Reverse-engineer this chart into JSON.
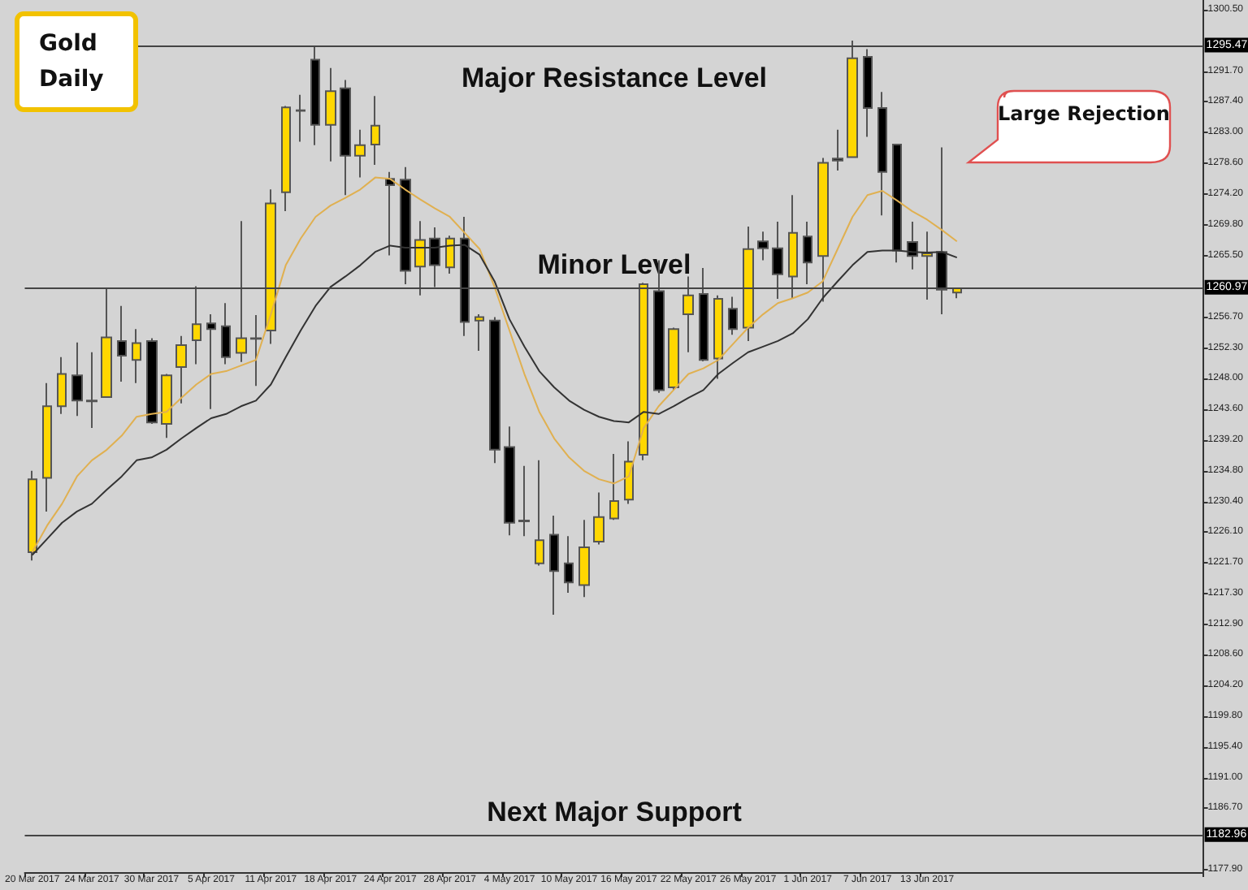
{
  "chart_data": {
    "type": "candlestick",
    "title": "Gold Daily",
    "categories": [
      "20 Mar 2017",
      null,
      null,
      null,
      "24 Mar 2017",
      null,
      null,
      null,
      "30 Mar 2017",
      null,
      null,
      null,
      "5 Apr 2017",
      null,
      null,
      null,
      "11 Apr 2017",
      null,
      null,
      null,
      "18 Apr 2017",
      null,
      null,
      null,
      "24 Apr 2017",
      null,
      null,
      null,
      "28 Apr 2017",
      null,
      null,
      null,
      "4 May 2017",
      null,
      null,
      null,
      "10 May 2017",
      null,
      null,
      null,
      "16 May 2017",
      null,
      null,
      null,
      "22 May 2017",
      null,
      null,
      null,
      "26 May 2017",
      null,
      null,
      null,
      "1 Jun 2017",
      null,
      null,
      null,
      "7 Jun 2017",
      null,
      null,
      null,
      "13 Jun 2017",
      null,
      null
    ],
    "series": [
      {
        "type": "candlestick",
        "ohlc": [
          [
            1223.2,
            1234.8,
            1222.0,
            1233.6
          ],
          [
            1233.8,
            1247.3,
            1229.0,
            1244.0
          ],
          [
            1244.0,
            1251.0,
            1242.9,
            1248.6
          ],
          [
            1248.4,
            1253.1,
            1242.6,
            1244.8
          ],
          [
            1244.8,
            1251.7,
            1240.9,
            1244.7
          ],
          [
            1245.3,
            1260.8,
            1245.2,
            1253.8
          ],
          [
            1253.3,
            1258.3,
            1247.5,
            1251.2
          ],
          [
            1250.6,
            1255.0,
            1247.3,
            1253.0
          ],
          [
            1253.3,
            1253.7,
            1241.5,
            1241.7
          ],
          [
            1241.5,
            1248.6,
            1239.5,
            1248.4
          ],
          [
            1249.6,
            1254.0,
            1244.4,
            1252.7
          ],
          [
            1253.4,
            1261.1,
            1250.0,
            1255.7
          ],
          [
            1255.8,
            1257.1,
            1243.6,
            1255.0
          ],
          [
            1255.4,
            1258.7,
            1250.0,
            1251.0
          ],
          [
            1251.6,
            1270.4,
            1250.3,
            1253.7
          ],
          [
            1253.7,
            1257.0,
            1246.9,
            1253.6
          ],
          [
            1254.8,
            1274.9,
            1252.9,
            1272.9
          ],
          [
            1274.5,
            1286.8,
            1271.8,
            1286.6
          ],
          [
            1286.1,
            1288.4,
            1281.7,
            1286.2
          ],
          [
            1293.4,
            1295.3,
            1281.2,
            1284.1
          ],
          [
            1284.1,
            1292.2,
            1278.9,
            1288.9
          ],
          [
            1289.3,
            1290.5,
            1274.1,
            1279.7
          ],
          [
            1279.7,
            1283.4,
            1276.6,
            1281.2
          ],
          [
            1281.3,
            1288.2,
            1278.4,
            1284.0
          ],
          [
            1276.4,
            1277.4,
            1265.5,
            1275.5
          ],
          [
            1276.3,
            1278.1,
            1261.4,
            1263.3
          ],
          [
            1263.9,
            1270.4,
            1259.8,
            1267.7
          ],
          [
            1267.9,
            1269.5,
            1261.0,
            1264.1
          ],
          [
            1263.8,
            1268.3,
            1262.9,
            1267.9
          ],
          [
            1267.9,
            1271.0,
            1254.0,
            1256.0
          ],
          [
            1256.2,
            1257.1,
            1251.9,
            1256.7
          ],
          [
            1256.2,
            1256.7,
            1235.9,
            1237.8
          ],
          [
            1238.2,
            1241.1,
            1225.6,
            1227.4
          ],
          [
            1227.7,
            1235.5,
            1225.5,
            1227.6
          ],
          [
            1221.6,
            1236.3,
            1221.3,
            1224.9
          ],
          [
            1225.7,
            1228.4,
            1214.3,
            1220.5
          ],
          [
            1221.6,
            1225.5,
            1217.4,
            1218.9
          ],
          [
            1218.5,
            1227.8,
            1216.8,
            1223.9
          ],
          [
            1224.7,
            1231.7,
            1224.3,
            1228.2
          ],
          [
            1228.0,
            1237.2,
            1227.8,
            1230.5
          ],
          [
            1230.7,
            1239.0,
            1230.1,
            1236.1
          ],
          [
            1237.1,
            1261.6,
            1236.3,
            1261.4
          ],
          [
            1260.4,
            1264.8,
            1245.9,
            1246.3
          ],
          [
            1246.7,
            1255.2,
            1246.3,
            1255.0
          ],
          [
            1257.1,
            1262.5,
            1251.7,
            1259.8
          ],
          [
            1260.0,
            1263.7,
            1250.4,
            1250.6
          ],
          [
            1250.8,
            1259.8,
            1247.9,
            1259.3
          ],
          [
            1257.9,
            1259.6,
            1254.2,
            1255.0
          ],
          [
            1255.2,
            1269.6,
            1253.3,
            1266.4
          ],
          [
            1267.5,
            1268.9,
            1264.8,
            1266.5
          ],
          [
            1266.5,
            1270.3,
            1259.3,
            1262.8
          ],
          [
            1262.5,
            1274.1,
            1259.4,
            1268.7
          ],
          [
            1268.2,
            1270.3,
            1261.4,
            1264.5
          ],
          [
            1265.4,
            1279.4,
            1258.9,
            1278.7
          ],
          [
            1279.3,
            1283.4,
            1277.6,
            1279.0
          ],
          [
            1279.5,
            1296.1,
            1279.4,
            1293.6
          ],
          [
            1293.8,
            1294.9,
            1282.4,
            1286.5
          ],
          [
            1286.5,
            1288.8,
            1271.2,
            1277.4
          ],
          [
            1281.3,
            1281.4,
            1264.5,
            1266.2
          ],
          [
            1267.4,
            1270.3,
            1263.5,
            1265.4
          ],
          [
            1265.4,
            1268.9,
            1259.2,
            1265.8
          ],
          [
            1266.0,
            1280.9,
            1257.1,
            1260.6
          ],
          [
            1260.2,
            1260.8,
            1259.4,
            1260.8
          ]
        ],
        "colors": [
          "#ffd700",
          "#ffd700",
          "#ffd700",
          "#000000",
          "#000000",
          "#ffd700",
          "#000000",
          "#ffd700",
          "#000000",
          "#ffd700",
          "#ffd700",
          "#ffd700",
          "#000000",
          "#000000",
          "#ffd700",
          "#000000",
          "#ffd700",
          "#ffd700",
          "#ffd700",
          "#000000",
          "#ffd700",
          "#000000",
          "#ffd700",
          "#ffd700",
          "#000000",
          "#000000",
          "#ffd700",
          "#000000",
          "#ffd700",
          "#000000",
          "#ffd700",
          "#000000",
          "#000000",
          "#000000",
          "#ffd700",
          "#000000",
          "#000000",
          "#ffd700",
          "#ffd700",
          "#ffd700",
          "#ffd700",
          "#ffd700",
          "#000000",
          "#ffd700",
          "#ffd700",
          "#000000",
          "#ffd700",
          "#000000",
          "#ffd700",
          "#000000",
          "#000000",
          "#ffd700",
          "#000000",
          "#ffd700",
          "#000000",
          "#ffd700",
          "#000000",
          "#000000",
          "#000000",
          "#000000",
          "#ffd700",
          "#000000",
          "#ffd700"
        ]
      },
      {
        "type": "line",
        "color": "#e0b050",
        "values": [
          1223.2,
          1227.0,
          1230.1,
          1234.0,
          1236.3,
          1237.8,
          1239.8,
          1242.5,
          1242.9,
          1243.2,
          1245.2,
          1247.1,
          1248.6,
          1249.0,
          1249.8,
          1250.6,
          1257.1,
          1264.1,
          1267.9,
          1271.0,
          1272.6,
          1273.7,
          1274.9,
          1276.6,
          1276.4,
          1274.9,
          1273.5,
          1272.2,
          1271.0,
          1268.7,
          1266.4,
          1261.0,
          1254.8,
          1248.6,
          1243.2,
          1239.4,
          1236.7,
          1234.8,
          1233.6,
          1233.0,
          1234.0,
          1240.9,
          1244.0,
          1246.3,
          1248.6,
          1249.4,
          1250.6,
          1252.9,
          1255.2,
          1257.1,
          1258.7,
          1259.4,
          1260.2,
          1261.8,
          1266.4,
          1271.0,
          1274.1,
          1274.7,
          1273.3,
          1271.8,
          1270.6,
          1269.1,
          1267.5
        ]
      },
      {
        "type": "line",
        "color": "#333333",
        "values": [
          1222.8,
          1225.1,
          1227.4,
          1229.0,
          1230.1,
          1232.1,
          1234.0,
          1236.3,
          1236.7,
          1237.8,
          1239.4,
          1240.9,
          1242.3,
          1242.9,
          1244.0,
          1244.8,
          1247.1,
          1251.0,
          1254.8,
          1258.3,
          1261.0,
          1262.5,
          1264.1,
          1266.0,
          1266.9,
          1266.6,
          1266.6,
          1266.6,
          1266.9,
          1267.0,
          1265.6,
          1261.8,
          1256.4,
          1252.5,
          1249.0,
          1246.7,
          1244.8,
          1243.5,
          1242.5,
          1241.9,
          1241.7,
          1243.2,
          1242.9,
          1244.0,
          1245.2,
          1246.3,
          1248.6,
          1250.2,
          1251.7,
          1252.5,
          1253.3,
          1254.4,
          1256.4,
          1259.4,
          1261.8,
          1264.1,
          1266.0,
          1266.2,
          1266.2,
          1266.0,
          1265.9,
          1266.0,
          1265.2
        ]
      }
    ],
    "ylim": [
      1177.6,
      1301.9
    ],
    "yticks": [
      {
        "value": 1300.5,
        "label": "1300.50"
      },
      {
        "value": 1291.7,
        "label": "1291.70"
      },
      {
        "value": 1287.4,
        "label": "1287.40"
      },
      {
        "value": 1283.0,
        "label": "1283.00"
      },
      {
        "value": 1278.6,
        "label": "1278.60"
      },
      {
        "value": 1274.2,
        "label": "1274.20"
      },
      {
        "value": 1269.8,
        "label": "1269.80"
      },
      {
        "value": 1265.5,
        "label": "1265.50"
      },
      {
        "value": 1256.7,
        "label": "1256.70"
      },
      {
        "value": 1252.3,
        "label": "1252.30"
      },
      {
        "value": 1248.0,
        "label": "1248.00"
      },
      {
        "value": 1243.6,
        "label": "1243.60"
      },
      {
        "value": 1239.2,
        "label": "1239.20"
      },
      {
        "value": 1234.8,
        "label": "1234.80"
      },
      {
        "value": 1230.4,
        "label": "1230.40"
      },
      {
        "value": 1226.1,
        "label": "1226.10"
      },
      {
        "value": 1221.7,
        "label": "1221.70"
      },
      {
        "value": 1217.3,
        "label": "1217.30"
      },
      {
        "value": 1212.9,
        "label": "1212.90"
      },
      {
        "value": 1208.6,
        "label": "1208.60"
      },
      {
        "value": 1204.2,
        "label": "1204.20"
      },
      {
        "value": 1199.8,
        "label": "1199.80"
      },
      {
        "value": 1195.4,
        "label": "1195.40"
      },
      {
        "value": 1191.0,
        "label": "1191.00"
      },
      {
        "value": 1186.7,
        "label": "1186.70"
      },
      {
        "value": 1177.9,
        "label": "1177.90"
      }
    ],
    "ref_lines": [
      {
        "axis": "y",
        "value": 1295.47,
        "label": "1295.47",
        "color": "#444444"
      },
      {
        "axis": "y",
        "value": 1260.97,
        "label": "1260.97",
        "color": "#444444"
      },
      {
        "axis": "y",
        "value": 1182.96,
        "label": "1182.96",
        "color": "#444444"
      }
    ],
    "annotations": [
      "Major Resistance Level",
      "Minor Level",
      "Next Major Support",
      "Large Rejection"
    ]
  }
}
